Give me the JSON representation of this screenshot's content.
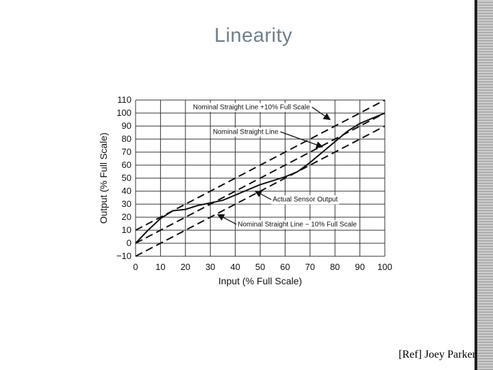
{
  "slide": {
    "title": "Linearity",
    "reference": "[Ref] Joey Parker"
  },
  "chart_data": {
    "type": "line",
    "xlabel": "Input (% Full Scale)",
    "ylabel": "Output (% Full Scale)",
    "xlim": [
      0,
      100
    ],
    "ylim": [
      -10,
      110
    ],
    "xticks": [
      0,
      10,
      20,
      30,
      40,
      50,
      60,
      70,
      80,
      90,
      100
    ],
    "yticks": [
      -10,
      0,
      10,
      20,
      30,
      40,
      50,
      60,
      70,
      80,
      90,
      100,
      110
    ],
    "grid": true,
    "series": [
      {
        "name": "Nominal Straight Line + 10% Full Scale",
        "style": "dashed",
        "x": [
          0,
          100
        ],
        "y": [
          10,
          110
        ]
      },
      {
        "name": "Nominal Straight Line",
        "style": "dashed",
        "x": [
          0,
          100
        ],
        "y": [
          0,
          100
        ]
      },
      {
        "name": "Nominal Straight Line − 10% Full Scale",
        "style": "dashed",
        "x": [
          0,
          100
        ],
        "y": [
          -10,
          90
        ]
      },
      {
        "name": "Actual Sensor Output",
        "style": "solid",
        "x": [
          0,
          5,
          10,
          15,
          20,
          25,
          30,
          35,
          40,
          45,
          50,
          55,
          60,
          65,
          70,
          75,
          80,
          85,
          90,
          95,
          100
        ],
        "y": [
          0,
          10,
          19,
          25,
          26,
          29,
          31,
          33,
          37,
          41,
          45,
          48,
          51,
          55,
          62,
          70,
          78,
          86,
          92,
          96,
          100
        ]
      }
    ],
    "annotations": [
      {
        "text": "Nominal Straight Line +10% Full Scale",
        "x": 23,
        "y": 103,
        "arrow_to": [
          78,
          95
        ]
      },
      {
        "text": "Nominal Straight Line",
        "x": 31,
        "y": 84,
        "arrow_to": [
          75,
          74
        ]
      },
      {
        "text": "Actual Sensor Output",
        "x": 55,
        "y": 32,
        "arrow_to": [
          48,
          40
        ]
      },
      {
        "text": "Nominal Straight Line − 10% Full Scale",
        "x": 41,
        "y": 13,
        "arrow_to": [
          33,
          22
        ]
      }
    ]
  }
}
